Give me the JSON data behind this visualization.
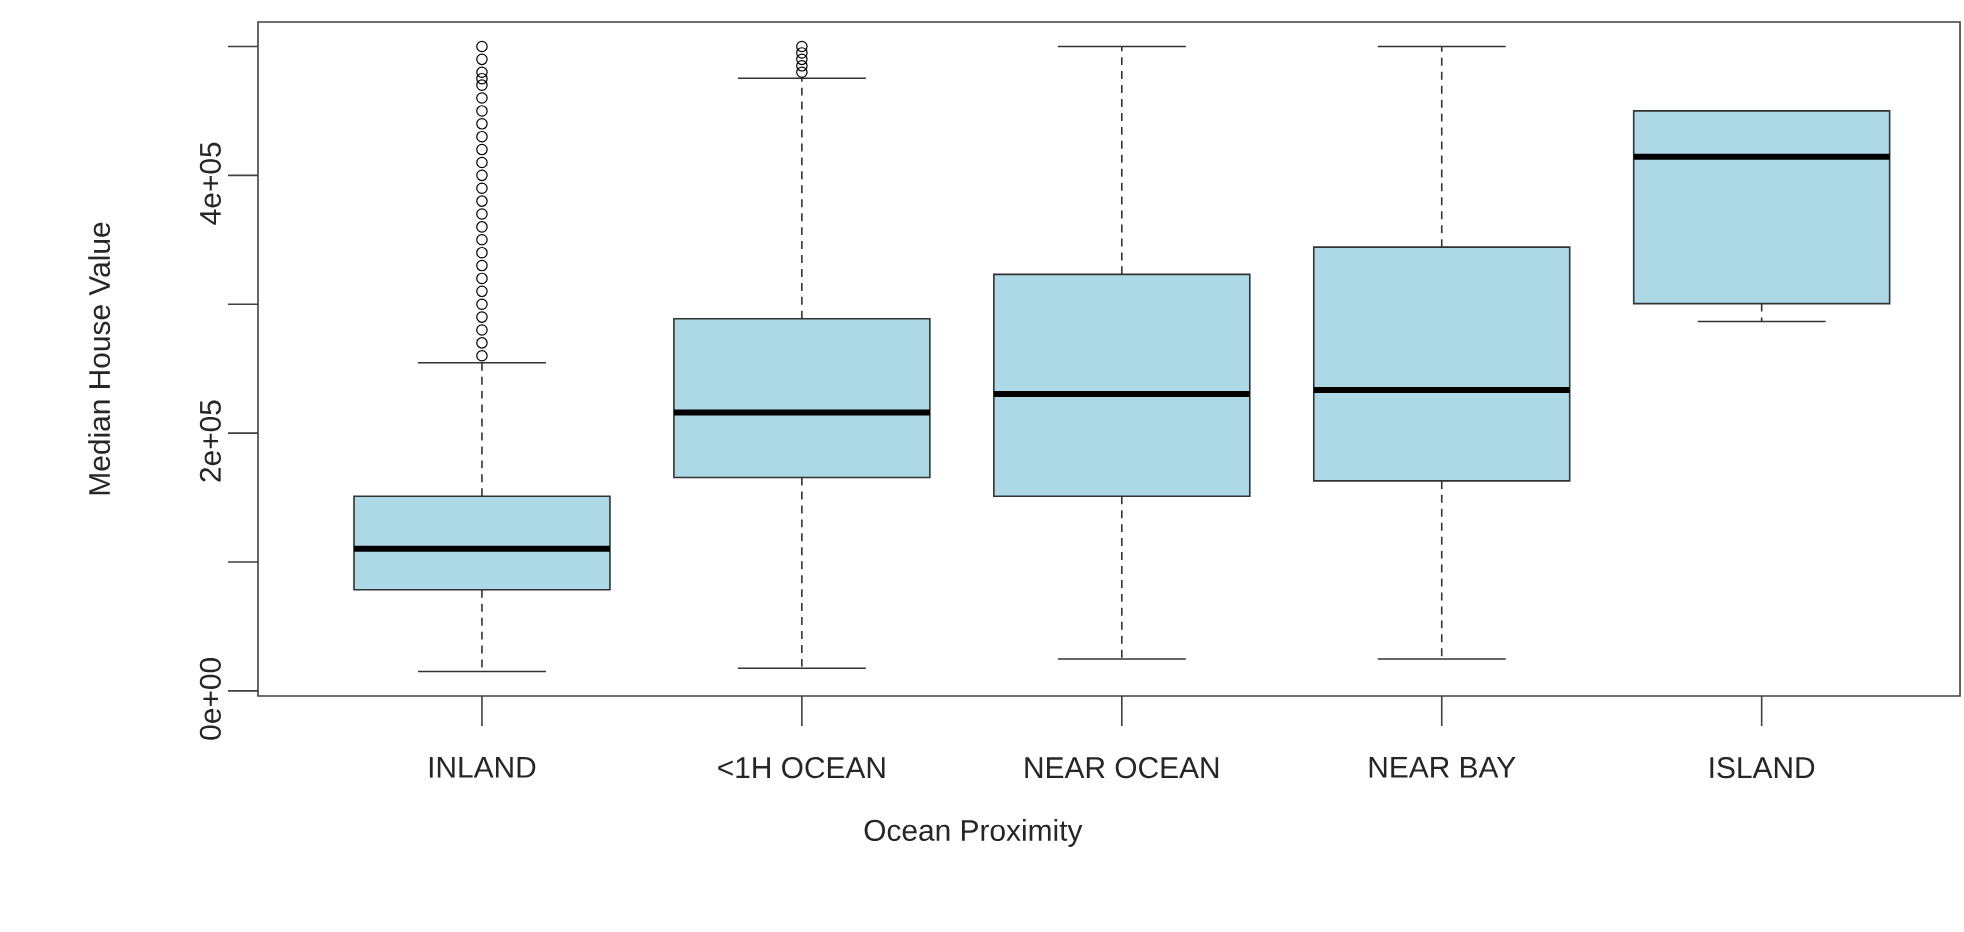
{
  "chart_data": {
    "type": "box",
    "xlabel": "Ocean Proximity",
    "ylabel": "Median House Value",
    "categories": [
      "INLAND",
      "<1H OCEAN",
      "NEAR OCEAN",
      "NEAR BAY",
      "ISLAND"
    ],
    "color": "#add8e6",
    "marker": "circle",
    "boxes": [
      {
        "low": 15000,
        "q1": 78400,
        "median": 110300,
        "q3": 151000,
        "high": 254600,
        "outliers": [
          260000,
          270000,
          280000,
          290000,
          300000,
          310000,
          320000,
          330000,
          340000,
          350000,
          360000,
          370000,
          380000,
          390000,
          400000,
          410000,
          420000,
          430000,
          440000,
          450000,
          460000,
          470000,
          475000,
          480000,
          490000,
          500000
        ]
      },
      {
        "low": 17500,
        "q1": 165500,
        "median": 216000,
        "q3": 288700,
        "high": 475300,
        "outliers": [
          480000,
          485000,
          490000,
          495000,
          500000
        ]
      },
      {
        "low": 24700,
        "q1": 151000,
        "median": 230400,
        "q3": 323200,
        "high": 500000
      },
      {
        "low": 24700,
        "q1": 162900,
        "median": 233500,
        "q3": 344300,
        "high": 500000
      },
      {
        "low": 286600,
        "q1": 300500,
        "median": 414400,
        "q3": 450000,
        "high": 450000
      }
    ],
    "ylim": [
      -4000,
      519000
    ],
    "yticks": [
      {
        "value": 0,
        "label": "0e+00"
      },
      {
        "value": 100000,
        "label": null
      },
      {
        "value": 200000,
        "label": "2e+05"
      },
      {
        "value": 300000,
        "label": null
      },
      {
        "value": 400000,
        "label": "4e+05"
      },
      {
        "value": 500000,
        "label": null
      }
    ]
  }
}
